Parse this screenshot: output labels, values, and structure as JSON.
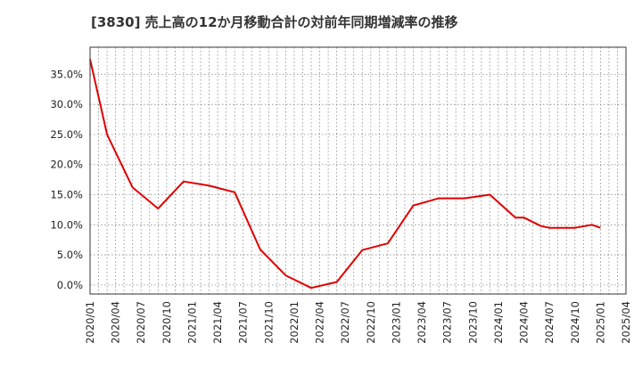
{
  "chart_data": {
    "type": "line",
    "title": "[3830]  売上高の12か月移動合計の対前年同期増減率の推移",
    "xlabel": "",
    "ylabel": "",
    "ylim": [
      -1.5,
      39.5
    ],
    "grid": true,
    "y_ticks": [
      0,
      5,
      10,
      15,
      20,
      25,
      30,
      35
    ],
    "y_tick_labels": [
      "0.0%",
      "5.0%",
      "10.0%",
      "15.0%",
      "20.0%",
      "25.0%",
      "30.0%",
      "35.0%"
    ],
    "x_tick_labels": [
      "2020/01",
      "2020/04",
      "2020/07",
      "2020/10",
      "2021/01",
      "2021/04",
      "2021/07",
      "2021/10",
      "2022/01",
      "2022/04",
      "2022/07",
      "2022/10",
      "2023/01",
      "2023/04",
      "2023/07",
      "2023/10",
      "2024/01",
      "2024/04",
      "2024/07",
      "2024/10",
      "2025/01",
      "2025/04"
    ],
    "series": [
      {
        "name": "増減率",
        "color": "#e00000",
        "x": [
          0,
          2,
          5,
          8,
          11,
          14,
          17,
          20,
          23,
          26,
          29,
          32,
          35,
          38,
          41,
          44,
          47,
          50,
          51,
          53,
          54,
          57,
          59,
          60
        ],
        "values": [
          37.5,
          25.0,
          16.2,
          12.7,
          17.2,
          16.5,
          15.4,
          5.9,
          1.6,
          -0.5,
          0.5,
          5.8,
          6.9,
          13.2,
          14.4,
          14.4,
          15.0,
          11.2,
          11.2,
          9.8,
          9.5,
          9.5,
          10.0,
          9.5
        ]
      }
    ],
    "x_index_per_tick": 3,
    "x_max_index": 63
  }
}
